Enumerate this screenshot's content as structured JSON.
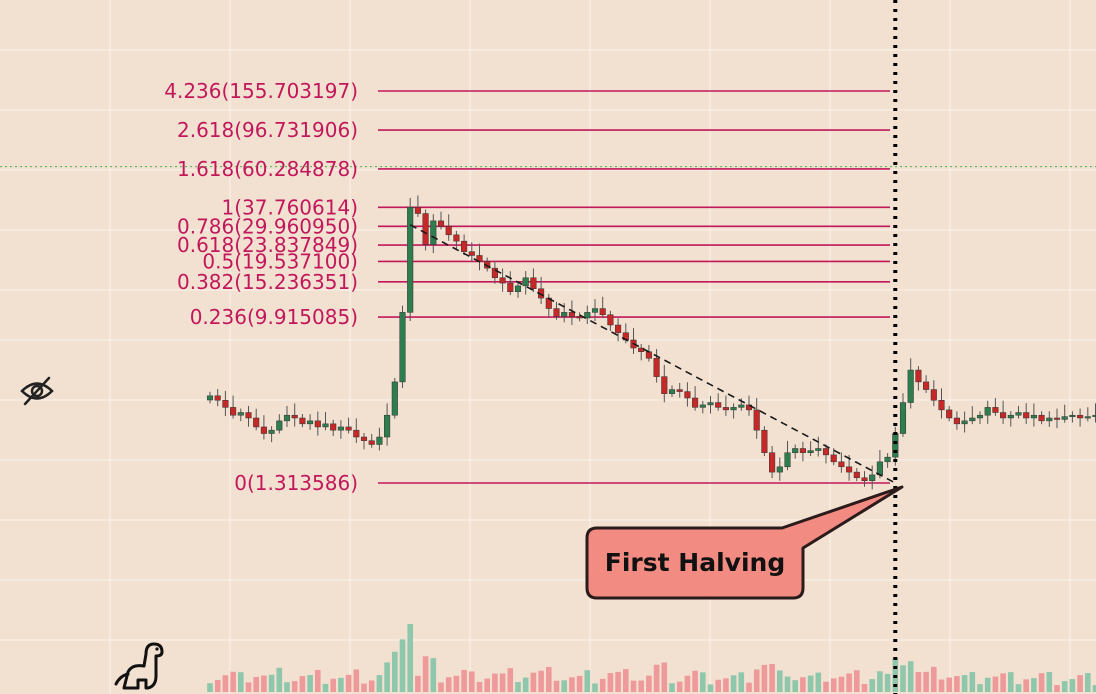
{
  "colors": {
    "background": "#f2e1d1",
    "grid": "#ffffff",
    "fib_line": "#c2185b",
    "candle_up": "#2e7d4f",
    "candle_down": "#c62828",
    "volume_up": "#8fc7ad",
    "volume_down": "#ef9a9a",
    "callout_fill": "#f28b82",
    "callout_border": "#2b1b1b",
    "trendline": "#1a1a1a",
    "halving_line": "#000000",
    "price_line": "#4caf50"
  },
  "icons": {
    "hide": "eye-off-icon",
    "logo": "dinosaur-icon"
  },
  "callout": {
    "text": "First Halving"
  },
  "chart_data": {
    "type": "candlestick",
    "y_scale": "log",
    "ylim": [
      0.9,
      260
    ],
    "grid": true,
    "fib_levels": [
      {
        "ratio": 4.236,
        "price": 155.703197,
        "label": "4.236(155.703197)"
      },
      {
        "ratio": 2.618,
        "price": 96.731906,
        "label": "2.618(96.731906)"
      },
      {
        "ratio": 1.618,
        "price": 60.284878,
        "label": "1.618(60.284878)"
      },
      {
        "ratio": 1,
        "price": 37.760614,
        "label": "1(37.760614)"
      },
      {
        "ratio": 0.786,
        "price": 29.96095,
        "label": "0.786(29.960950)"
      },
      {
        "ratio": 0.618,
        "price": 23.837849,
        "label": "0.618(23.837849)"
      },
      {
        "ratio": 0.5,
        "price": 19.5371,
        "label": "0.5(19.537100)"
      },
      {
        "ratio": 0.382,
        "price": 15.236351,
        "label": "0.382(15.236351)"
      },
      {
        "ratio": 0.236,
        "price": 9.915085,
        "label": "0.236(9.915085)"
      },
      {
        "ratio": 0,
        "price": 1.313586,
        "label": "0(1.313586)"
      }
    ],
    "closes": [
      3.8,
      3.6,
      3.3,
      3.0,
      3.1,
      2.9,
      2.6,
      2.4,
      2.5,
      2.8,
      3.0,
      2.9,
      2.7,
      2.8,
      2.6,
      2.7,
      2.5,
      2.6,
      2.5,
      2.3,
      2.2,
      2.1,
      2.3,
      3.0,
      4.5,
      10.5,
      37.8,
      35,
      24,
      32,
      30,
      27,
      25,
      22,
      21,
      19.5,
      18,
      16,
      15,
      13.5,
      14.5,
      16,
      14,
      12.5,
      11,
      10,
      10.5,
      10,
      9.8,
      10.5,
      11,
      10.2,
      9.0,
      8.2,
      7.5,
      6.8,
      6.5,
      6.0,
      4.8,
      3.9,
      4.1,
      4.0,
      3.7,
      3.3,
      3.4,
      3.5,
      3.3,
      3.2,
      3.3,
      3.4,
      3.2,
      2.5,
      1.9,
      1.5,
      1.6,
      1.9,
      2.0,
      1.9,
      1.95,
      2.0,
      1.85,
      1.7,
      1.6,
      1.5,
      1.4,
      1.35,
      1.45,
      1.7,
      1.8,
      2.4,
      3.5,
      5.2,
      4.5,
      4.1,
      3.6,
      3.2,
      2.9,
      2.7,
      2.8,
      2.9,
      3.0,
      3.3,
      3.1,
      2.9,
      3.0,
      3.1,
      2.9,
      3.0,
      2.8,
      2.9,
      2.85,
      2.95,
      3.0,
      2.9,
      2.95,
      3.0
    ],
    "halving_index": 89,
    "hidden_price_level": 62,
    "trendline": {
      "from": {
        "index": 26,
        "price": 30.5
      },
      "to": {
        "index": 89,
        "price": 1.313586
      }
    }
  }
}
